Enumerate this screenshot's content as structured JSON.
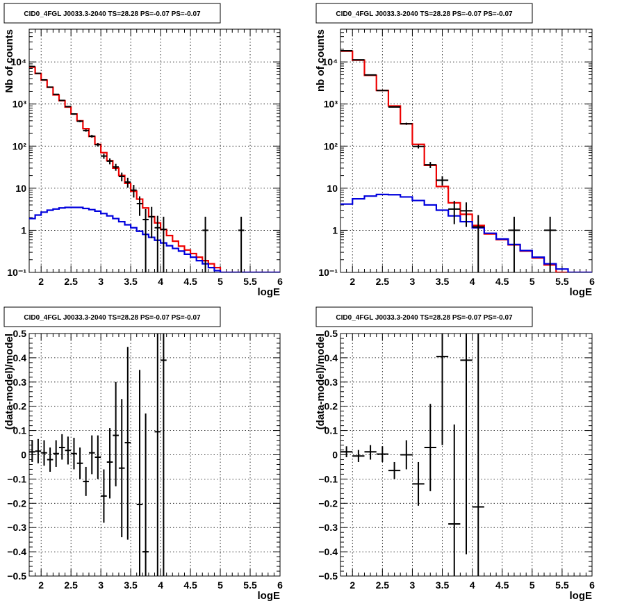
{
  "chart_data": [
    {
      "type": "histogram",
      "title": "CID0_4FGL J0033.3-2040 TS=28.28 PS=-0.07 PS=-0.07",
      "xlabel": "logE",
      "ylabel": "Nb of counts",
      "xlim": [
        1.8,
        6
      ],
      "ylim": [
        0.1,
        60000
      ],
      "yscale": "log",
      "grid": true,
      "xticks": [
        2,
        2.5,
        3,
        3.5,
        4,
        4.5,
        5,
        5.5,
        6
      ],
      "yticks": [
        {
          "value": 0.1,
          "label": "10⁻¹"
        },
        {
          "value": 1,
          "label": "1"
        },
        {
          "value": 10,
          "label": "10"
        },
        {
          "value": 100,
          "label": "10²"
        },
        {
          "value": 1000,
          "label": "10³"
        },
        {
          "value": 10000,
          "label": "10⁴"
        }
      ],
      "series": [
        {
          "role": "total-model",
          "color": "#ee0000",
          "edges": [
            1.8,
            1.9,
            2.0,
            2.1,
            2.2,
            2.3,
            2.4,
            2.5,
            2.6,
            2.7,
            2.8,
            2.9,
            3.0,
            3.1,
            3.2,
            3.3,
            3.4,
            3.5,
            3.6,
            3.7,
            3.8,
            3.9,
            4.0,
            4.1,
            4.2,
            4.3,
            4.4,
            4.5,
            4.6,
            4.7,
            4.8,
            4.9,
            5.0,
            5.1,
            5.2,
            5.3,
            5.4,
            5.5,
            5.6,
            5.7,
            5.8,
            5.9,
            6.0
          ],
          "values": [
            7500,
            5300,
            3700,
            2500,
            1650,
            1200,
            850,
            580,
            400,
            260,
            170,
            110,
            70,
            45,
            30,
            20,
            13,
            8.5,
            5.5,
            3.4,
            2.1,
            1.5,
            1.05,
            0.75,
            0.55,
            0.42,
            0.34,
            0.28,
            0.23,
            0.19,
            0.16,
            0.13,
            0.1,
            0.1,
            0.1,
            0.1,
            0.1,
            0.1,
            0.1,
            0.1,
            0.1,
            0.1
          ]
        },
        {
          "role": "source-model",
          "color": "#0000dd",
          "edges": [
            1.8,
            1.9,
            2.0,
            2.1,
            2.2,
            2.3,
            2.4,
            2.5,
            2.6,
            2.7,
            2.8,
            2.9,
            3.0,
            3.1,
            3.2,
            3.3,
            3.4,
            3.5,
            3.6,
            3.7,
            3.8,
            3.9,
            4.0,
            4.1,
            4.2,
            4.3,
            4.4,
            4.5,
            4.6,
            4.7,
            4.8,
            4.9,
            5.0,
            5.1,
            5.2,
            5.3,
            5.4,
            5.5,
            5.6,
            5.7,
            5.8,
            5.9,
            6.0
          ],
          "values": [
            1.9,
            2.3,
            2.7,
            3.0,
            3.2,
            3.4,
            3.5,
            3.5,
            3.5,
            3.3,
            3.1,
            2.85,
            2.5,
            2.2,
            1.9,
            1.6,
            1.35,
            1.15,
            0.95,
            0.8,
            0.68,
            0.58,
            0.5,
            0.43,
            0.37,
            0.32,
            0.27,
            0.23,
            0.19,
            0.16,
            0.13,
            0.11,
            0.1,
            0.1,
            0.1,
            0.1,
            0.1,
            0.1,
            0.1,
            0.1,
            0.1,
            0.1
          ]
        }
      ],
      "data_points": [
        {
          "x": 1.85,
          "y": 7800,
          "xerr": 0.05,
          "ylo": 7700,
          "yhi": 7900
        },
        {
          "x": 1.95,
          "y": 5350,
          "xerr": 0.05,
          "ylo": 5280,
          "yhi": 5420
        },
        {
          "x": 2.05,
          "y": 3750,
          "xerr": 0.05,
          "ylo": 3690,
          "yhi": 3810
        },
        {
          "x": 2.15,
          "y": 2520,
          "xerr": 0.05,
          "ylo": 2470,
          "yhi": 2570
        },
        {
          "x": 2.25,
          "y": 1700,
          "xerr": 0.05,
          "ylo": 1660,
          "yhi": 1740
        },
        {
          "x": 2.35,
          "y": 1220,
          "xerr": 0.05,
          "ylo": 1190,
          "yhi": 1250
        },
        {
          "x": 2.45,
          "y": 870,
          "xerr": 0.05,
          "ylo": 840,
          "yhi": 900
        },
        {
          "x": 2.55,
          "y": 580,
          "xerr": 0.05,
          "ylo": 556,
          "yhi": 604
        },
        {
          "x": 2.65,
          "y": 390,
          "xerr": 0.05,
          "ylo": 370,
          "yhi": 410
        },
        {
          "x": 2.75,
          "y": 235,
          "xerr": 0.05,
          "ylo": 220,
          "yhi": 250
        },
        {
          "x": 2.85,
          "y": 172,
          "xerr": 0.05,
          "ylo": 159,
          "yhi": 185
        },
        {
          "x": 2.95,
          "y": 108,
          "xerr": 0.05,
          "ylo": 98,
          "yhi": 118
        },
        {
          "x": 3.05,
          "y": 58,
          "xerr": 0.05,
          "ylo": 50,
          "yhi": 66
        },
        {
          "x": 3.15,
          "y": 44,
          "xerr": 0.05,
          "ylo": 37,
          "yhi": 51
        },
        {
          "x": 3.25,
          "y": 32,
          "xerr": 0.05,
          "ylo": 26,
          "yhi": 38
        },
        {
          "x": 3.35,
          "y": 19,
          "xerr": 0.05,
          "ylo": 14.6,
          "yhi": 23.4
        },
        {
          "x": 3.45,
          "y": 14,
          "xerr": 0.05,
          "ylo": 10.3,
          "yhi": 17.7
        },
        {
          "x": 3.55,
          "y": 9,
          "xerr": 0.05,
          "ylo": 6,
          "yhi": 12
        },
        {
          "x": 3.65,
          "y": 4.3,
          "xerr": 0.05,
          "ylo": 2.2,
          "yhi": 6.4
        },
        {
          "x": 3.75,
          "y": 1.8,
          "xerr": 0.05,
          "ylo": 0.1,
          "yhi": 3.2
        },
        {
          "x": 3.85,
          "y": 2.1,
          "xerr": 0.05,
          "ylo": 0.65,
          "yhi": 3.6
        },
        {
          "x": 3.95,
          "y": 1.15,
          "xerr": 0.05,
          "ylo": 0.1,
          "yhi": 2.2
        },
        {
          "x": 4.05,
          "y": 1.05,
          "xerr": 0.05,
          "ylo": 0.1,
          "yhi": 2.1
        },
        {
          "x": 4.75,
          "y": 1.0,
          "xerr": 0.05,
          "ylo": 0.1,
          "yhi": 2.1
        },
        {
          "x": 5.35,
          "y": 1.0,
          "xerr": 0.05,
          "ylo": 0.1,
          "yhi": 2.1
        }
      ]
    },
    {
      "type": "histogram",
      "title": "CID0_4FGL J0033.3-2040 TS=28.28 PS=-0.07 PS=-0.07",
      "xlabel": "logE",
      "ylabel": "nb of counts",
      "xlim": [
        1.8,
        6
      ],
      "ylim": [
        0.1,
        60000
      ],
      "yscale": "log",
      "grid": true,
      "xticks": [
        2,
        2.5,
        3,
        3.5,
        4,
        4.5,
        5,
        5.5,
        6
      ],
      "yticks": [
        {
          "value": 0.1,
          "label": "10⁻¹"
        },
        {
          "value": 1,
          "label": "1"
        },
        {
          "value": 10,
          "label": "10"
        },
        {
          "value": 100,
          "label": "10²"
        },
        {
          "value": 1000,
          "label": "10³"
        },
        {
          "value": 10000,
          "label": "10⁴"
        }
      ],
      "series": [
        {
          "role": "total-model",
          "color": "#ee0000",
          "edges": [
            1.8,
            2.0,
            2.2,
            2.4,
            2.6,
            2.8,
            3.0,
            3.2,
            3.4,
            3.6,
            3.8,
            4.0,
            4.2,
            4.4,
            4.6,
            4.8,
            5.0,
            5.2,
            5.4,
            5.6,
            5.8,
            6.0
          ],
          "values": [
            18000,
            11000,
            4800,
            2100,
            900,
            340,
            110,
            35,
            11,
            4.5,
            2.4,
            1.3,
            0.82,
            0.6,
            0.45,
            0.32,
            0.22,
            0.15,
            0.1,
            0.1,
            0.1
          ]
        },
        {
          "role": "source-model",
          "color": "#0000dd",
          "edges": [
            1.8,
            2.0,
            2.2,
            2.4,
            2.6,
            2.8,
            3.0,
            3.2,
            3.4,
            3.6,
            3.8,
            4.0,
            4.2,
            4.4,
            4.6,
            4.8,
            5.0,
            5.2,
            5.4,
            5.6,
            5.8,
            6.0
          ],
          "values": [
            4.2,
            5.6,
            6.5,
            7.1,
            7.0,
            6.2,
            5.1,
            4.0,
            3.0,
            2.2,
            1.6,
            1.15,
            0.85,
            0.62,
            0.46,
            0.33,
            0.23,
            0.16,
            0.12,
            0.1,
            0.1
          ]
        }
      ],
      "data_points": [
        {
          "x": 1.9,
          "y": 18500,
          "xerr": 0.1,
          "ylo": 18200,
          "yhi": 18800
        },
        {
          "x": 2.1,
          "y": 11200,
          "xerr": 0.1,
          "ylo": 11000,
          "yhi": 11400
        },
        {
          "x": 2.3,
          "y": 4900,
          "xerr": 0.1,
          "ylo": 4800,
          "yhi": 5000
        },
        {
          "x": 2.5,
          "y": 2100,
          "xerr": 0.1,
          "ylo": 2050,
          "yhi": 2150
        },
        {
          "x": 2.7,
          "y": 850,
          "xerr": 0.1,
          "ylo": 820,
          "yhi": 880
        },
        {
          "x": 2.9,
          "y": 340,
          "xerr": 0.1,
          "ylo": 320,
          "yhi": 360
        },
        {
          "x": 3.1,
          "y": 98,
          "xerr": 0.1,
          "ylo": 88,
          "yhi": 108
        },
        {
          "x": 3.3,
          "y": 36,
          "xerr": 0.1,
          "ylo": 30,
          "yhi": 42
        },
        {
          "x": 3.5,
          "y": 15.5,
          "xerr": 0.1,
          "ylo": 11.6,
          "yhi": 19.4
        },
        {
          "x": 3.7,
          "y": 3.2,
          "xerr": 0.1,
          "ylo": 1.4,
          "yhi": 5.0
        },
        {
          "x": 3.9,
          "y": 2.9,
          "xerr": 0.1,
          "ylo": 1.2,
          "yhi": 4.6
        },
        {
          "x": 4.1,
          "y": 1.2,
          "xerr": 0.1,
          "ylo": 0.1,
          "yhi": 2.3
        },
        {
          "x": 4.7,
          "y": 1.0,
          "xerr": 0.1,
          "ylo": 0.1,
          "yhi": 2.1
        },
        {
          "x": 5.3,
          "y": 1.0,
          "xerr": 0.1,
          "ylo": 0.1,
          "yhi": 2.1
        }
      ]
    },
    {
      "type": "scatter",
      "title": "CID0_4FGL J0033.3-2040 TS=28.28 PS=-0.07 PS=-0.07",
      "xlabel": "logE",
      "ylabel": "(data-model)/model",
      "xlim": [
        1.8,
        6
      ],
      "ylim": [
        -0.5,
        0.5
      ],
      "yscale": "linear",
      "grid": true,
      "xticks": [
        2,
        2.5,
        3,
        3.5,
        4,
        4.5,
        5,
        5.5,
        6
      ],
      "yticks": [
        {
          "value": -0.5,
          "label": "−0.5"
        },
        {
          "value": -0.4,
          "label": "−0.4"
        },
        {
          "value": -0.3,
          "label": "−0.3"
        },
        {
          "value": -0.2,
          "label": "−0.2"
        },
        {
          "value": -0.1,
          "label": "−0.1"
        },
        {
          "value": 0,
          "label": "0"
        },
        {
          "value": 0.1,
          "label": "0.1"
        },
        {
          "value": 0.2,
          "label": "0.2"
        },
        {
          "value": 0.3,
          "label": "0.3"
        },
        {
          "value": 0.4,
          "label": "0.4"
        },
        {
          "value": 0.5,
          "label": "0.5"
        }
      ],
      "data_points": [
        {
          "x": 1.85,
          "y": 0.012,
          "xerr": 0.05,
          "ylo": -0.03,
          "yhi": 0.06
        },
        {
          "x": 1.95,
          "y": 0.015,
          "xerr": 0.05,
          "ylo": -0.035,
          "yhi": 0.065
        },
        {
          "x": 2.05,
          "y": 0.008,
          "xerr": 0.05,
          "ylo": -0.045,
          "yhi": 0.06
        },
        {
          "x": 2.15,
          "y": -0.02,
          "xerr": 0.05,
          "ylo": -0.07,
          "yhi": 0.03
        },
        {
          "x": 2.25,
          "y": 0.005,
          "xerr": 0.05,
          "ylo": -0.05,
          "yhi": 0.06
        },
        {
          "x": 2.35,
          "y": 0.03,
          "xerr": 0.05,
          "ylo": -0.02,
          "yhi": 0.085
        },
        {
          "x": 2.45,
          "y": 0.018,
          "xerr": 0.05,
          "ylo": -0.04,
          "yhi": 0.075
        },
        {
          "x": 2.55,
          "y": 0.005,
          "xerr": 0.05,
          "ylo": -0.06,
          "yhi": 0.07
        },
        {
          "x": 2.65,
          "y": -0.035,
          "xerr": 0.05,
          "ylo": -0.1,
          "yhi": 0.03
        },
        {
          "x": 2.75,
          "y": -0.11,
          "xerr": 0.05,
          "ylo": -0.17,
          "yhi": -0.05
        },
        {
          "x": 2.85,
          "y": 0.008,
          "xerr": 0.05,
          "ylo": -0.08,
          "yhi": 0.08
        },
        {
          "x": 2.95,
          "y": -0.01,
          "xerr": 0.05,
          "ylo": -0.1,
          "yhi": 0.08
        },
        {
          "x": 3.05,
          "y": -0.17,
          "xerr": 0.05,
          "ylo": -0.28,
          "yhi": -0.06
        },
        {
          "x": 3.15,
          "y": -0.03,
          "xerr": 0.05,
          "ylo": -0.18,
          "yhi": 0.11
        },
        {
          "x": 3.25,
          "y": 0.08,
          "xerr": 0.05,
          "ylo": -0.13,
          "yhi": 0.3
        },
        {
          "x": 3.35,
          "y": -0.055,
          "xerr": 0.05,
          "ylo": -0.34,
          "yhi": 0.23
        },
        {
          "x": 3.45,
          "y": 0.05,
          "xerr": 0.05,
          "ylo": -0.35,
          "yhi": 0.445
        },
        {
          "x": 3.65,
          "y": -0.205,
          "xerr": 0.05,
          "ylo": -0.5,
          "yhi": 0.35
        },
        {
          "x": 3.75,
          "y": -0.4,
          "xerr": 0.05,
          "ylo": -0.5,
          "yhi": 0.17
        },
        {
          "x": 3.95,
          "y": 0.095,
          "xerr": 0.05,
          "ylo": -0.5,
          "yhi": 0.5
        },
        {
          "x": 4.05,
          "y": 0.39,
          "xerr": 0.05,
          "ylo": -0.5,
          "yhi": 0.5
        }
      ]
    },
    {
      "type": "scatter",
      "title": "CID0_4FGL J0033.3-2040 TS=28.28 PS=-0.07 PS=-0.07",
      "xlabel": "logE",
      "ylabel": "(data-model)/model",
      "xlim": [
        1.8,
        6
      ],
      "ylim": [
        -0.5,
        0.5
      ],
      "yscale": "linear",
      "grid": true,
      "xticks": [
        2,
        2.5,
        3,
        3.5,
        4,
        4.5,
        5,
        5.5,
        6
      ],
      "yticks": [
        {
          "value": -0.5,
          "label": "−0.5"
        },
        {
          "value": -0.4,
          "label": "−0.4"
        },
        {
          "value": -0.3,
          "label": "−0.3"
        },
        {
          "value": -0.2,
          "label": "−0.2"
        },
        {
          "value": -0.1,
          "label": "−0.1"
        },
        {
          "value": 0,
          "label": "0"
        },
        {
          "value": 0.1,
          "label": "0.1"
        },
        {
          "value": 0.2,
          "label": "0.2"
        },
        {
          "value": 0.3,
          "label": "0.3"
        },
        {
          "value": 0.4,
          "label": "0.4"
        },
        {
          "value": 0.5,
          "label": "0.5"
        }
      ],
      "data_points": [
        {
          "x": 1.9,
          "y": 0.012,
          "xerr": 0.1,
          "ylo": -0.01,
          "yhi": 0.035
        },
        {
          "x": 2.1,
          "y": -0.005,
          "xerr": 0.1,
          "ylo": -0.03,
          "yhi": 0.02
        },
        {
          "x": 2.3,
          "y": 0.012,
          "xerr": 0.1,
          "ylo": -0.02,
          "yhi": 0.04
        },
        {
          "x": 2.5,
          "y": 0.003,
          "xerr": 0.1,
          "ylo": -0.03,
          "yhi": 0.035
        },
        {
          "x": 2.7,
          "y": -0.065,
          "xerr": 0.1,
          "ylo": -0.1,
          "yhi": -0.03
        },
        {
          "x": 2.9,
          "y": 0.0,
          "xerr": 0.1,
          "ylo": -0.06,
          "yhi": 0.06
        },
        {
          "x": 3.1,
          "y": -0.12,
          "xerr": 0.1,
          "ylo": -0.21,
          "yhi": -0.03
        },
        {
          "x": 3.3,
          "y": 0.03,
          "xerr": 0.1,
          "ylo": -0.15,
          "yhi": 0.21
        },
        {
          "x": 3.5,
          "y": 0.405,
          "xerr": 0.1,
          "ylo": 0.04,
          "yhi": 0.5
        },
        {
          "x": 3.7,
          "y": -0.285,
          "xerr": 0.1,
          "ylo": -0.5,
          "yhi": 0.125
        },
        {
          "x": 3.9,
          "y": 0.39,
          "xerr": 0.1,
          "ylo": -0.41,
          "yhi": 0.5
        },
        {
          "x": 4.1,
          "y": -0.215,
          "xerr": 0.1,
          "ylo": -0.5,
          "yhi": 0.5
        }
      ]
    }
  ]
}
